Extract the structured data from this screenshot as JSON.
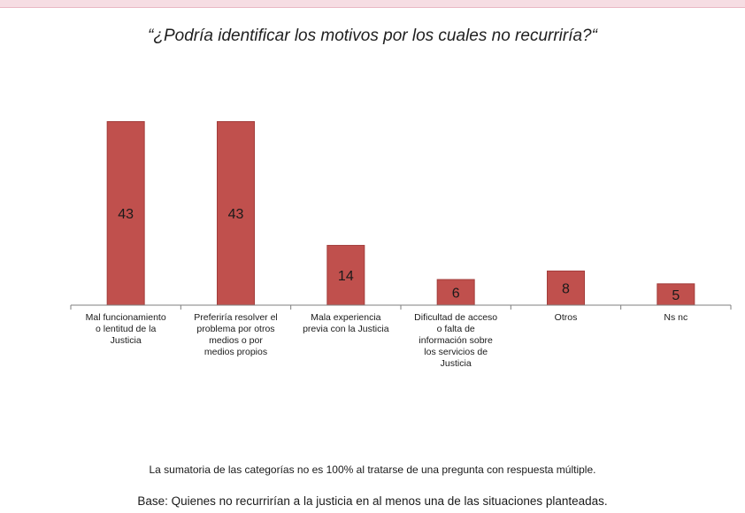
{
  "header": {
    "title": "“¿Podría identificar los motivos por los cuales no recurriría?“"
  },
  "chart_data": {
    "type": "bar",
    "title": "“¿Podría identificar los motivos por los cuales no recurriría?“",
    "categories": [
      [
        "Mal funcionamiento",
        "o lentitud de la",
        "Justicia"
      ],
      [
        "Preferiría resolver el",
        "problema por otros",
        "medios o por",
        "medios propios"
      ],
      [
        "Mala experiencia",
        "previa con la Justicia"
      ],
      [
        "Dificultad de acceso",
        "o falta de",
        "información sobre",
        "los servicios de",
        "Justicia"
      ],
      [
        "Otros"
      ],
      [
        "Ns nc"
      ]
    ],
    "values": [
      43,
      43,
      14,
      6,
      8,
      5
    ],
    "data_labels": [
      "43",
      "43",
      "14",
      "6",
      "8",
      "5"
    ],
    "bar_color": "#c0504d",
    "bar_stroke": "#a23d3b",
    "axis_color": "#7f7f7f",
    "ylim": [
      0,
      46
    ],
    "grid": false,
    "legend": "none"
  },
  "footer": {
    "note": "La sumatoria de las categorías no es 100% al tratarse de una pregunta con respuesta múltiple.",
    "base": "Base: Quienes no recurrirían a la justicia en al menos una de las situaciones planteadas."
  }
}
